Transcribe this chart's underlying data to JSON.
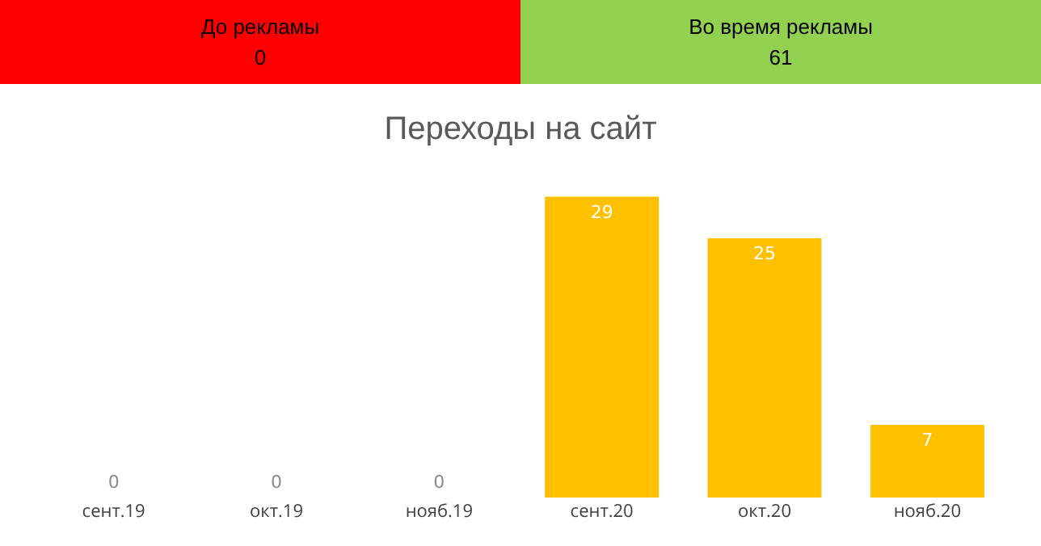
{
  "chart_data": [
    {
      "type": "other",
      "categories": [
        "До рекламы",
        "Во время рекламы"
      ],
      "values": [
        0,
        61
      ],
      "colors": [
        "#ff0000",
        "#92d050"
      ],
      "data_labels": true
    },
    {
      "type": "bar",
      "title": "Переходы на сайт",
      "categories": [
        "сент.19",
        "окт.19",
        "нояб.19",
        "сент.20",
        "окт.20",
        "нояб.20"
      ],
      "values": [
        0,
        0,
        0,
        29,
        25,
        7
      ],
      "color": "#ffc000",
      "data_labels": true,
      "tick_labels": "x"
    }
  ]
}
